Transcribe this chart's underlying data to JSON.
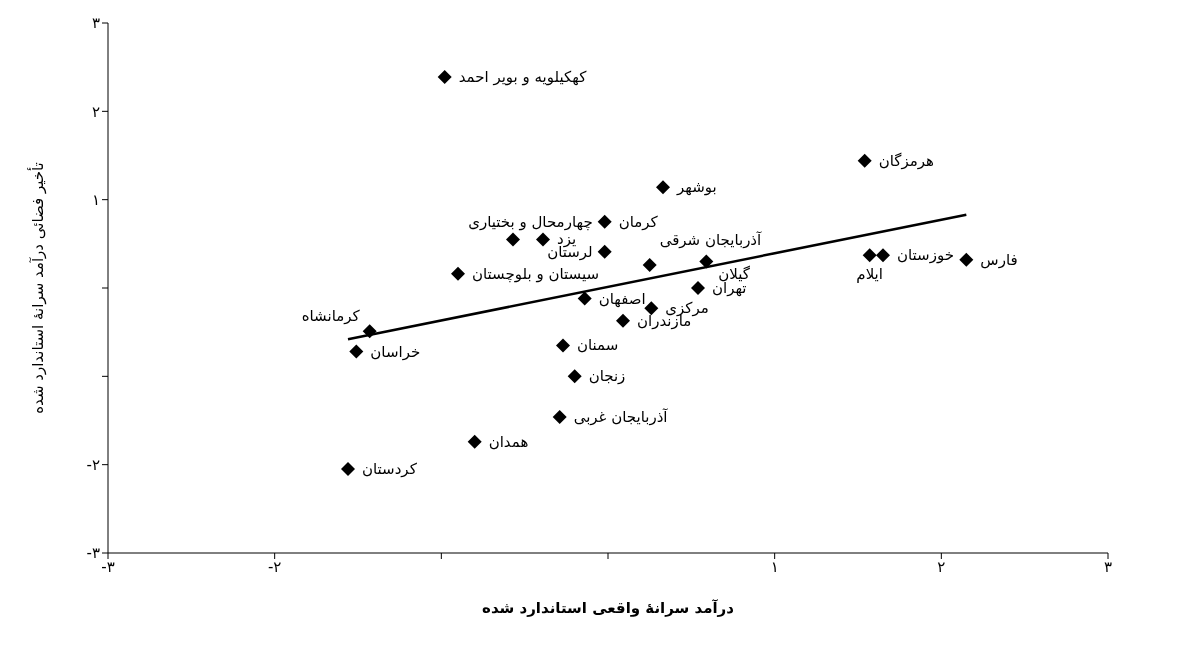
{
  "chart_data": {
    "type": "scatter",
    "xlabel": "درآمد سرانهٔ واقعی استاندارد شده",
    "ylabel": "تأخیر فضائی درآمد سرانهٔ استاندارد شده",
    "xlim": [
      -3,
      3
    ],
    "ylim": [
      -3,
      3
    ],
    "xticks": [
      {
        "value": -3,
        "label": "-۳"
      },
      {
        "value": -2,
        "label": "-۲"
      },
      {
        "value": -1,
        "label": null
      },
      {
        "value": 0,
        "label": null
      },
      {
        "value": 1,
        "label": "۱"
      },
      {
        "value": 2,
        "label": "۲"
      },
      {
        "value": 3,
        "label": "۳"
      }
    ],
    "yticks": [
      {
        "value": -3,
        "label": "-۳"
      },
      {
        "value": -2,
        "label": "-۲"
      },
      {
        "value": -1,
        "label": null
      },
      {
        "value": 0,
        "label": null
      },
      {
        "value": 1,
        "label": "۱"
      },
      {
        "value": 2,
        "label": "۲"
      },
      {
        "value": 3,
        "label": "۳"
      }
    ],
    "grid": false,
    "legend": false,
    "series": [
      {
        "type": "scatter",
        "color": "#000000",
        "marker": "diamond",
        "x": [
          -0.98,
          1.54,
          0.33,
          -0.02,
          -0.57,
          -0.39,
          -0.02,
          0.25,
          0.59,
          -0.9,
          0.54,
          -0.14,
          0.26,
          0.09,
          -0.27,
          -0.2,
          -0.29,
          -0.8,
          -1.56,
          -1.43,
          -1.51,
          1.57,
          1.65,
          2.15
        ],
        "values": [
          2.39,
          1.44,
          1.14,
          0.75,
          0.55,
          0.55,
          0.41,
          0.26,
          0.3,
          0.16,
          0.0,
          -0.12,
          -0.23,
          -0.37,
          -0.65,
          -1.0,
          -1.46,
          -1.74,
          -2.05,
          -0.49,
          -0.72,
          0.37,
          0.37,
          0.32
        ]
      },
      {
        "type": "line",
        "color": "#000000",
        "line_style": "solid",
        "x": [
          -1.56,
          2.15
        ],
        "values": [
          -0.58,
          0.83
        ]
      }
    ],
    "annotations": [
      {
        "text": "کهکیلویه و بویر احمد",
        "x": -0.98,
        "y": 2.39
      },
      {
        "text": "هرمزگان",
        "x": 1.54,
        "y": 1.44
      },
      {
        "text": "بوشهر",
        "x": 0.33,
        "y": 1.14
      },
      {
        "text": "چهارمحال و بختیاری",
        "x": -0.02,
        "y": 0.75
      },
      {
        "text": "کرمان",
        "x": -0.02,
        "y": 0.75
      },
      {
        "text": "یزد",
        "x": -0.39,
        "y": 0.55
      },
      {
        "text": "لرستان",
        "x": -0.02,
        "y": 0.41
      },
      {
        "text": "آذربایجان شرقی",
        "x": 0.25,
        "y": 0.26
      },
      {
        "text": "گیلان",
        "x": 0.59,
        "y": 0.3
      },
      {
        "text": "سیستان و بلوچستان",
        "x": -0.9,
        "y": 0.16
      },
      {
        "text": "تهران",
        "x": 0.54,
        "y": 0.0
      },
      {
        "text": "اصفهان",
        "x": -0.14,
        "y": -0.12
      },
      {
        "text": "مرکزی",
        "x": 0.26,
        "y": -0.23
      },
      {
        "text": "مازندران",
        "x": 0.09,
        "y": -0.37
      },
      {
        "text": "سمنان",
        "x": -0.27,
        "y": -0.65
      },
      {
        "text": "زنجان",
        "x": -0.2,
        "y": -1.0
      },
      {
        "text": "آذربایجان غربی",
        "x": -0.29,
        "y": -1.46
      },
      {
        "text": "همدان",
        "x": -0.8,
        "y": -1.74
      },
      {
        "text": "کردستان",
        "x": -1.56,
        "y": -2.05
      },
      {
        "text": "کرمانشاه",
        "x": -1.43,
        "y": -0.49
      },
      {
        "text": "خراسان",
        "x": -1.51,
        "y": -0.72
      },
      {
        "text": "ایلام",
        "x": 1.57,
        "y": 0.37
      },
      {
        "text": "خوزستان",
        "x": 1.65,
        "y": 0.37
      },
      {
        "text": "فارس",
        "x": 2.15,
        "y": 0.32
      }
    ]
  }
}
